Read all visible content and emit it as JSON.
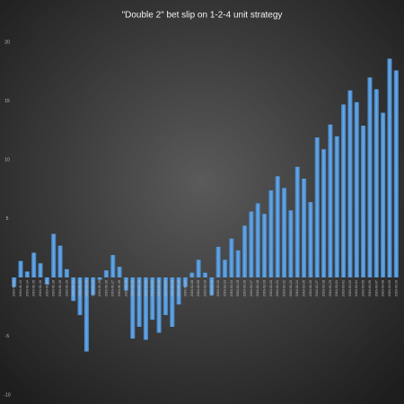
{
  "chart_data": {
    "type": "bar",
    "title": "\"Double 2\" bet slip on 1-2-4 unit strategy",
    "categories": [
      "2016-01-12",
      "2016-01-13",
      "2016-01-14",
      "2016-01-15",
      "2016-01-16",
      "2016-01-17",
      "2016-01-18",
      "2016-01-19",
      "2016-01-20",
      "2016-01-21",
      "2016-01-22",
      "2016-01-23",
      "2016-01-24",
      "2016-01-25",
      "2016-01-26",
      "2016-01-27",
      "2016-01-28",
      "2016-01-29",
      "2016-01-30",
      "2016-01-31",
      "2016-02-01",
      "2016-02-02",
      "2016-02-03",
      "2016-02-04",
      "2016-02-05",
      "2016-02-06",
      "2016-02-07",
      "2016-02-08",
      "2016-02-09",
      "2016-02-10",
      "2016-02-11",
      "2016-02-12",
      "2016-02-13",
      "2016-02-14",
      "2016-02-15",
      "2016-02-16",
      "2016-02-17",
      "2016-02-18",
      "2016-02-19",
      "2016-02-20",
      "2016-02-21",
      "2016-02-22",
      "2016-02-23",
      "2016-02-24",
      "2016-02-25",
      "2016-02-26",
      "2016-02-27",
      "2016-02-28",
      "2016-02-29",
      "2016-03-01",
      "2016-03-02",
      "2016-03-03",
      "2016-03-04",
      "2016-03-05",
      "2016-03-06",
      "2016-03-07",
      "2016-03-08",
      "2016-03-09",
      "2016-03-10"
    ],
    "values": [
      -0.8,
      1.4,
      0.5,
      2.1,
      1.2,
      -0.6,
      3.7,
      2.7,
      0.7,
      -2.0,
      -3.2,
      -6.3,
      -1.5,
      -0.2,
      0.6,
      1.9,
      0.9,
      -1.1,
      -5.2,
      -4.2,
      -5.3,
      -3.6,
      -4.7,
      -3.2,
      -4.2,
      -2.3,
      -0.8,
      0.4,
      1.5,
      0.4,
      -1.5,
      2.6,
      1.5,
      3.3,
      2.3,
      4.4,
      5.6,
      6.3,
      5.4,
      7.4,
      8.6,
      7.6,
      5.7,
      9.4,
      8.4,
      6.4,
      11.9,
      10.9,
      13.0,
      12.0,
      14.7,
      15.9,
      14.9,
      12.9,
      17.0,
      16.0,
      14.0,
      18.6,
      17.6
    ],
    "color": "#5b9bd5",
    "ylim": [
      -10,
      20
    ],
    "yticks": [
      -10,
      -5,
      5,
      10,
      15,
      20
    ],
    "grid": false
  }
}
